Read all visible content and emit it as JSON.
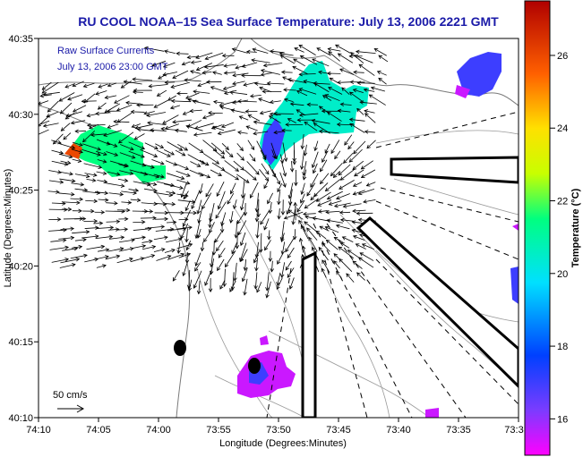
{
  "chart_data": {
    "type": "heatmap",
    "title": "RU COOL  NOAA–15  Sea Surface Temperature:  July 13, 2006 2221 GMT",
    "xlabel": "Longitude (Degrees:Minutes)",
    "ylabel": "Latitude (Degrees:Minutes)",
    "x_ticks": [
      "74:10",
      "74:05",
      "74:00",
      "73:55",
      "73:50",
      "73:45",
      "73:40",
      "73:35",
      "73:3"
    ],
    "y_ticks": [
      "40:35",
      "40:30",
      "40:25",
      "40:20",
      "40:15",
      "40:10"
    ],
    "colorbar": {
      "label": "Temperature (°C)",
      "ticks": [
        26,
        24,
        22,
        20,
        18,
        16
      ],
      "range": [
        15,
        27.5
      ]
    },
    "inset_lines": [
      "Raw Surface Currents",
      "July 13, 2006 23:00 GMT"
    ],
    "scale_label": "50 cm/s",
    "sst_patches": [
      {
        "region": "west shore",
        "temp_c": 21.5
      },
      {
        "region": "central plume",
        "temp_c": 20.5
      },
      {
        "region": "northeast corner",
        "temp_c": 17.0
      },
      {
        "region": "south blob",
        "temp_c": 15.5
      }
    ],
    "grid": false,
    "legend": "colorbar-right"
  }
}
